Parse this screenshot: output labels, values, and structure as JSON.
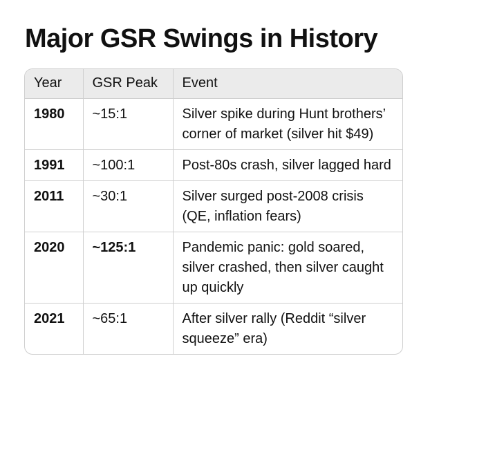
{
  "title": "Major GSR Swings in History",
  "table": {
    "headers": [
      "Year",
      "GSR Peak",
      "Event"
    ],
    "rows": [
      {
        "year": "1980",
        "gsr": "~15:1",
        "gsr_bold": false,
        "event": "Silver spike during Hunt brothers’ corner of market (silver hit $49)"
      },
      {
        "year": "1991",
        "gsr": "~100:1",
        "gsr_bold": false,
        "event": "Post-80s crash, silver lagged hard"
      },
      {
        "year": "2011",
        "gsr": "~30:1",
        "gsr_bold": false,
        "event": "Silver surged post-2008 crisis (QE, inflation fears)"
      },
      {
        "year": "2020",
        "gsr": "~125:1",
        "gsr_bold": true,
        "event": "Pandemic panic: gold soared, silver crashed, then silver caught up quickly"
      },
      {
        "year": "2021",
        "gsr": "~65:1",
        "gsr_bold": false,
        "event": "After silver rally (Reddit “silver squeeze” era)"
      }
    ]
  }
}
